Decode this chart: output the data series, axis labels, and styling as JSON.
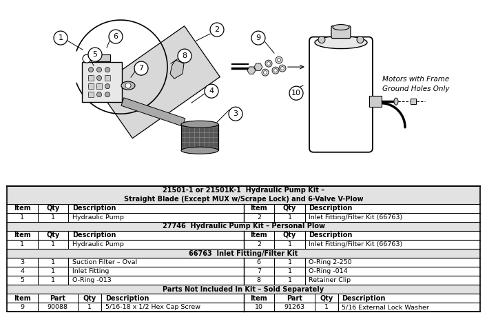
{
  "background_color": "#ffffff",
  "diagram_label_note": "Motors with Frame\nGround Holes Only",
  "table_sections": [
    {
      "type": "section_header",
      "text": "21501-1 or 21501K-1  Hydraulic Pump Kit –\nStraight Blade (Except MUX w/Scrape Lock) and 6-Valve V-Plow"
    },
    {
      "type": "col_header_6",
      "cols": [
        "Item",
        "Qty",
        "Description",
        "Item",
        "Qty",
        "Description"
      ]
    },
    {
      "type": "data_row_6",
      "cols": [
        "1",
        "1",
        "Hydraulic Pump",
        "2",
        "1",
        "Inlet Fitting/Filter Kit (66763)"
      ]
    },
    {
      "type": "section_header",
      "text": "27746  Hydraulic Pump Kit – Personal Plow"
    },
    {
      "type": "col_header_6",
      "cols": [
        "Item",
        "Qty",
        "Description",
        "Item",
        "Qty",
        "Description"
      ]
    },
    {
      "type": "data_row_6",
      "cols": [
        "1",
        "1",
        "Hydraulic Pump",
        "2",
        "1",
        "Inlet Fitting/Filter Kit (66763)"
      ]
    },
    {
      "type": "section_header",
      "text": "66763  Inlet Fitting/Filter Kit"
    },
    {
      "type": "data_row_6",
      "cols": [
        "3",
        "1",
        "Suction Filter – Oval",
        "6",
        "1",
        "O-Ring 2-250"
      ]
    },
    {
      "type": "data_row_6",
      "cols": [
        "4",
        "1",
        "Inlet Fitting",
        "7",
        "1",
        "O-Ring -014"
      ]
    },
    {
      "type": "data_row_6",
      "cols": [
        "5",
        "1",
        "O-Ring -013",
        "8",
        "1",
        "Retainer Clip"
      ]
    },
    {
      "type": "section_header",
      "text": "Parts Not Included In Kit – Sold Separately"
    },
    {
      "type": "col_header_8",
      "cols": [
        "Item",
        "Part",
        "Qty",
        "Description",
        "Item",
        "Part",
        "Qty",
        "Description"
      ]
    },
    {
      "type": "data_row_8",
      "cols": [
        "9",
        "90088",
        "1",
        "5/16-18 x 1/2 Hex Cap Screw",
        "10",
        "91263",
        "1",
        "5/16 External Lock Washer"
      ]
    }
  ]
}
